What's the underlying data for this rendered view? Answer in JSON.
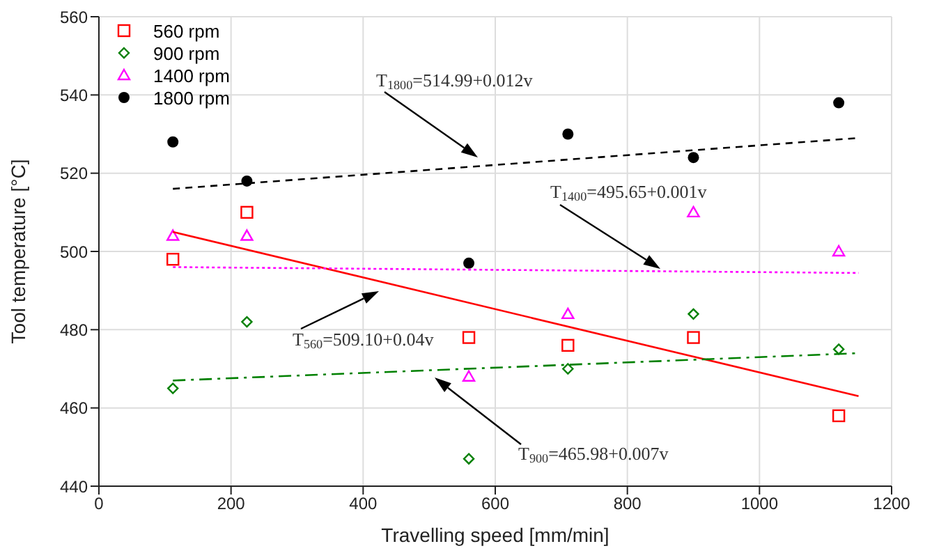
{
  "chart_data": {
    "type": "scatter",
    "xlabel": "Travelling speed [mm/min]",
    "ylabel": "Tool temperature [°C]",
    "xlim": [
      0,
      1200
    ],
    "xticks": [
      0,
      200,
      400,
      600,
      800,
      1000,
      1200
    ],
    "ylim": [
      440,
      560
    ],
    "yticks": [
      440,
      460,
      480,
      500,
      520,
      540,
      560
    ],
    "grid": true,
    "legend": "top left",
    "x": [
      112,
      224,
      560,
      710,
      900,
      1120,
      1150
    ],
    "series": [
      {
        "name": "560 rpm",
        "color": "#ff0000",
        "marker": "square",
        "values": [
          498,
          510,
          478,
          476,
          478,
          458,
          null
        ]
      },
      {
        "name": "900 rpm",
        "color": "#008000",
        "marker": "diamond",
        "values": [
          465,
          482,
          447,
          470,
          484,
          475,
          null
        ]
      },
      {
        "name": "1400 rpm",
        "color": "#ff00ff",
        "marker": "triangle",
        "values": [
          504,
          504,
          468,
          484,
          510,
          500,
          null
        ]
      },
      {
        "name": "1800 rpm",
        "color": "#000000",
        "marker": "circle",
        "values": [
          528,
          518,
          497,
          530,
          524,
          538,
          null
        ]
      },
      {
        "type": "line",
        "color": "#ff0000",
        "marker": "none",
        "line_style": "solid",
        "values": [
          505,
          null,
          null,
          null,
          null,
          null,
          463
        ]
      },
      {
        "type": "line",
        "color": "#008000",
        "marker": "none",
        "line_style": "dashdot",
        "values": [
          467,
          null,
          null,
          null,
          null,
          null,
          474
        ]
      },
      {
        "type": "line",
        "color": "#ff00ff",
        "marker": "none",
        "line_style": "dotted",
        "values": [
          496,
          null,
          null,
          null,
          null,
          null,
          494.5
        ]
      },
      {
        "type": "line",
        "color": "#000000",
        "marker": "none",
        "line_style": "dashed",
        "values": [
          516,
          null,
          null,
          null,
          null,
          null,
          529
        ]
      }
    ],
    "annotations": [
      "T$_{1800}$=514.99+0.012v",
      "T$_{1400}$=495.65+0.001v",
      "T$_{560}$=509.10+0.04v",
      "T$_{900}$=465.98+0.007v"
    ]
  }
}
